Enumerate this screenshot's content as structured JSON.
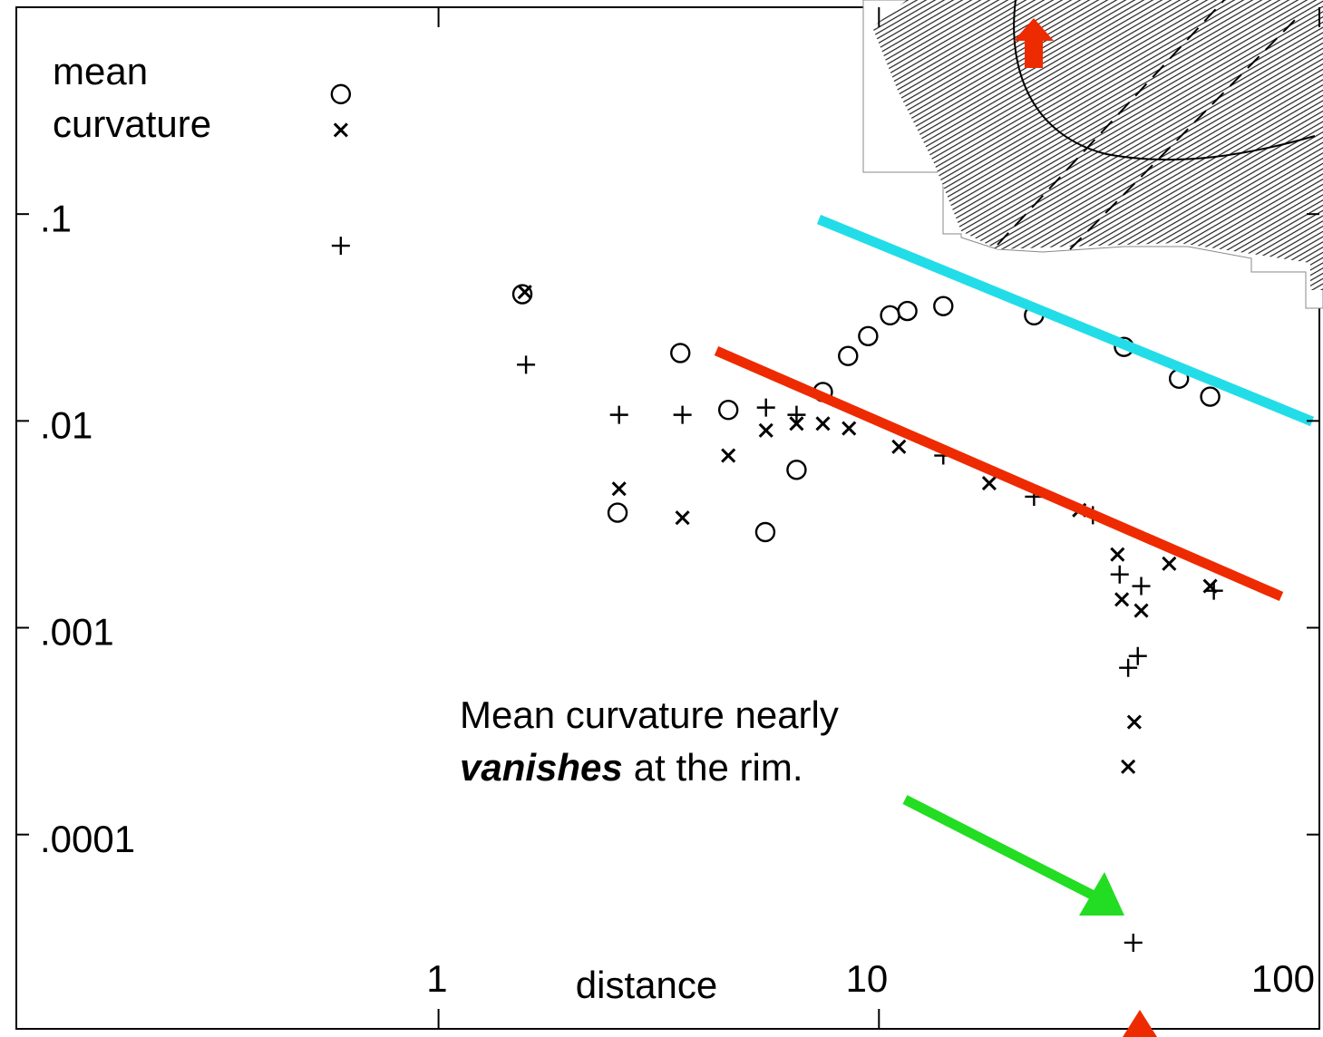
{
  "chart_data": {
    "type": "scatter",
    "xlabel": "distance",
    "ylabel": [
      "mean",
      "curvature"
    ],
    "annotation": {
      "line1": "Mean curvature nearly",
      "emphasis": "vanishes",
      "rest": "at the rim."
    },
    "xscale": "log",
    "yscale": "log",
    "xlim": [
      0.11,
      100
    ],
    "ylim": [
      1.15e-05,
      1
    ],
    "xticks": [
      1,
      10,
      100
    ],
    "yticks": [
      {
        "value": 0.1,
        "label": ".1"
      },
      {
        "value": 0.01,
        "label": ".01"
      },
      {
        "value": 0.001,
        "label": ".001"
      },
      {
        "value": 0.0001,
        "label": ".0001"
      }
    ],
    "series": [
      {
        "marker": "circle",
        "color": "#000000",
        "x": [
          0.6,
          1.55,
          3.54,
          2.55,
          4.55,
          5.52,
          6.5,
          7.46,
          8.51,
          9.45,
          10.6,
          11.6,
          14.0,
          22.5,
          36,
          48,
          56.5
        ],
        "values": [
          0.38,
          0.041,
          0.0213,
          0.0036,
          0.0113,
          0.0029,
          0.0058,
          0.0138,
          0.0206,
          0.0257,
          0.0324,
          0.034,
          0.0359,
          0.0324,
          0.0228,
          0.016,
          0.0131
        ]
      },
      {
        "marker": "x",
        "color": "#000000",
        "x": [
          0.6,
          1.57,
          2.57,
          3.58,
          4.55,
          5.54,
          6.5,
          7.46,
          8.55,
          11.1,
          17.8,
          28.5,
          34.8,
          35.6,
          39.4,
          38,
          36.8,
          45.6,
          56.5
        ],
        "values": [
          0.255,
          0.042,
          0.0047,
          0.0034,
          0.0068,
          0.009,
          0.0097,
          0.0097,
          0.0092,
          0.0075,
          0.005,
          0.0037,
          0.00226,
          0.00137,
          0.00121,
          0.00035,
          0.000213,
          0.00204,
          0.00159
        ]
      },
      {
        "marker": "plus",
        "color": "#000000",
        "x": [
          0.6,
          1.58,
          2.57,
          3.58,
          5.54,
          6.5,
          14.0,
          22.5,
          30.6,
          35.2,
          39.4,
          36.8,
          38.7,
          57.6,
          37.8
        ],
        "values": [
          0.0703,
          0.0187,
          0.0107,
          0.0107,
          0.0116,
          0.0107,
          0.0068,
          0.0043,
          0.0035,
          0.00181,
          0.00159,
          0.00064,
          0.00073,
          0.00151,
          3e-05
        ]
      }
    ]
  }
}
